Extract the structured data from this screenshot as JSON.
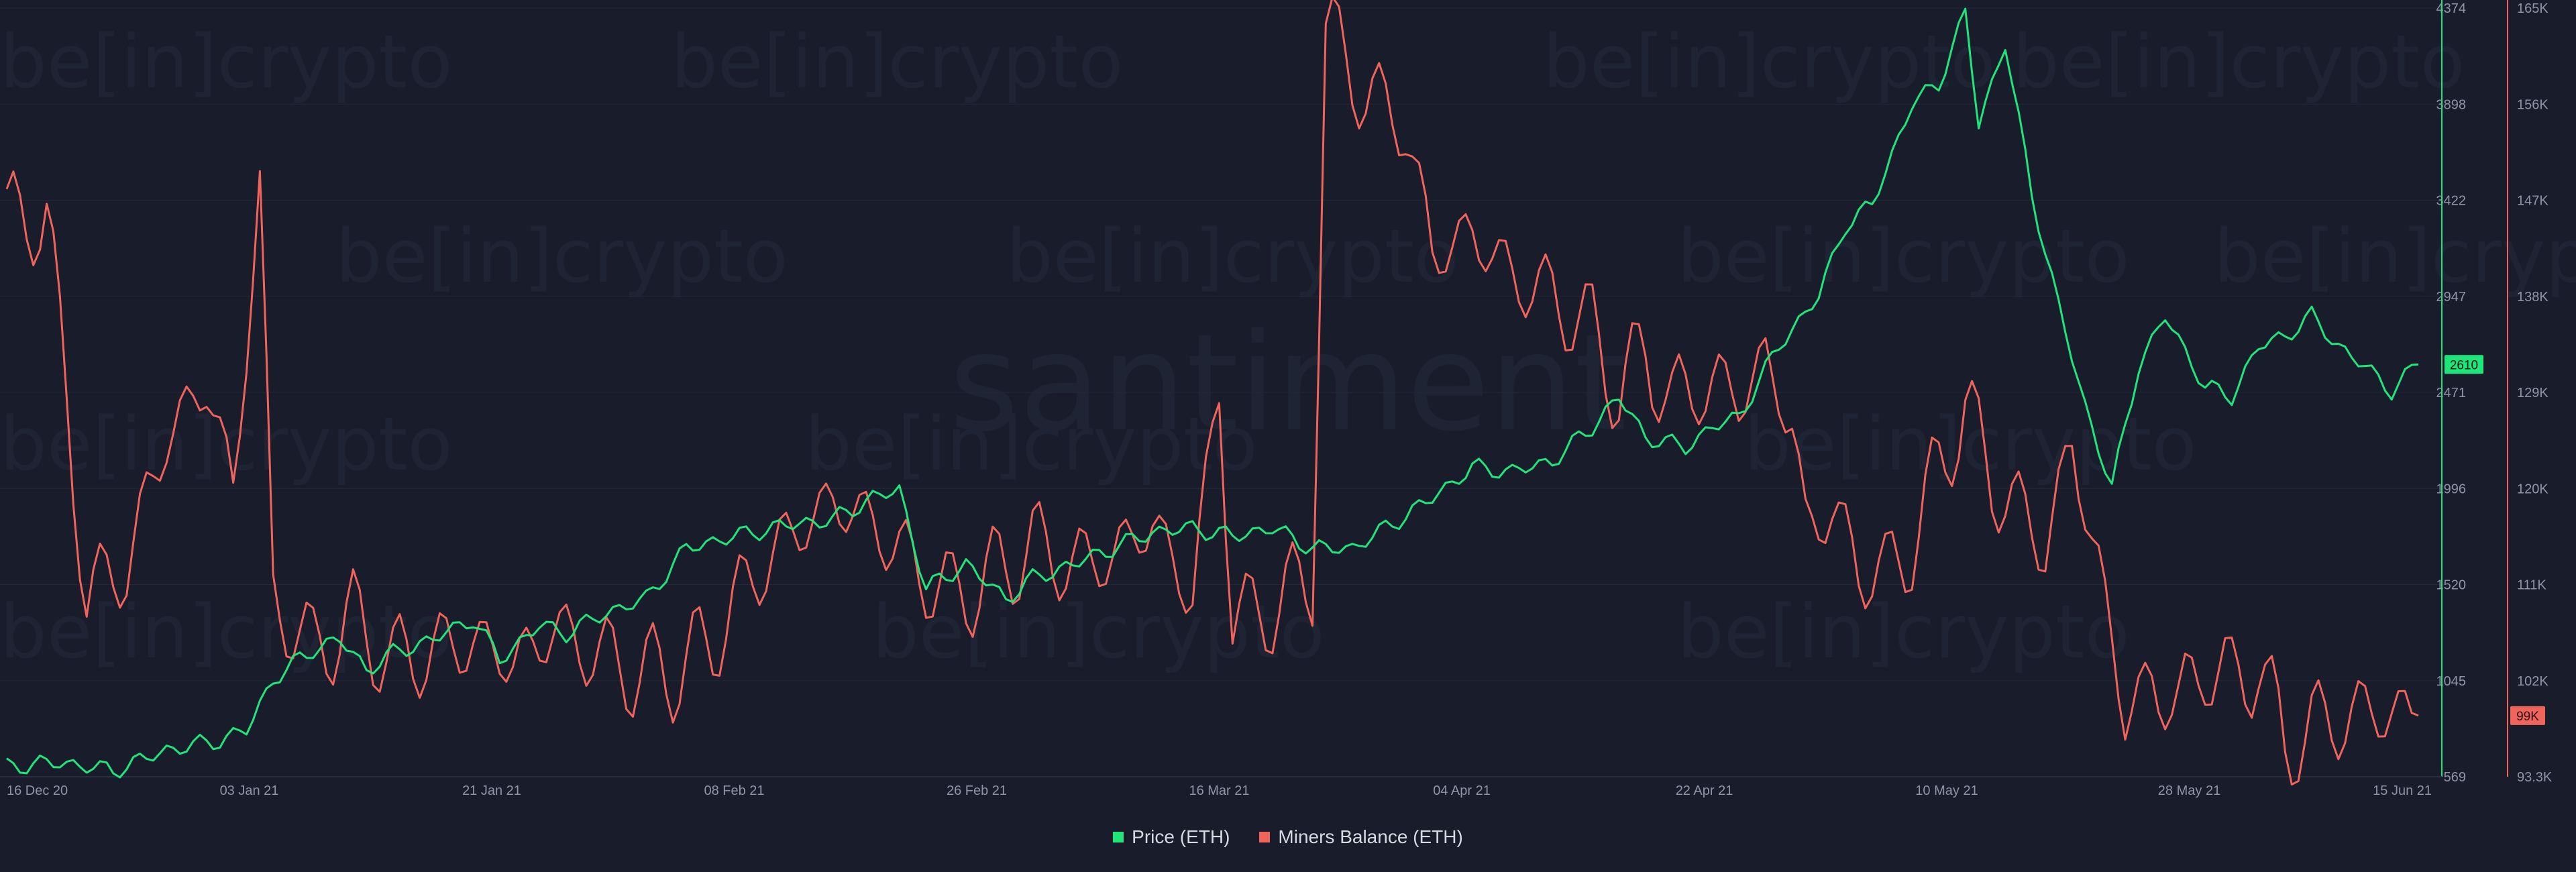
{
  "watermark": {
    "brand": "santiment",
    "partner": "be[in]crypto"
  },
  "colors": {
    "background": "#181c2b",
    "price": "#1fe67a",
    "miners": "#f0645c",
    "grid": "#232838",
    "axis_text": "#8f95a6"
  },
  "legend": {
    "price_label": "Price (ETH)",
    "miners_label": "Miners Balance (ETH)"
  },
  "chart_data": {
    "type": "line",
    "x_axis": {
      "ticks": [
        "16 Dec 20",
        "03 Jan 21",
        "21 Jan 21",
        "08 Feb 21",
        "26 Feb 21",
        "16 Mar 21",
        "04 Apr 21",
        "22 Apr 21",
        "10 May 21",
        "28 May 21",
        "15 Jun 21"
      ],
      "range": [
        "2020-12-16",
        "2021-06-15"
      ]
    },
    "y_axis_left": {
      "label": "",
      "ticks": [
        "4374",
        "3898",
        "3422",
        "2947",
        "2471",
        "1996",
        "1520",
        "1045",
        "569"
      ],
      "range": [
        569,
        4374
      ],
      "current_badge": "2610"
    },
    "y_axis_right": {
      "label": "",
      "ticks": [
        "165K",
        "156K",
        "147K",
        "138K",
        "129K",
        "120K",
        "111K",
        "102K",
        "93.3K"
      ],
      "range": [
        93300,
        165000
      ],
      "current_badge": "99K"
    },
    "series": [
      {
        "name": "Price (ETH)",
        "axis": "left",
        "points": [
          [
            "2020-12-16",
            620
          ],
          [
            "2020-12-20",
            640
          ],
          [
            "2020-12-24",
            600
          ],
          [
            "2020-12-28",
            700
          ],
          [
            "2021-01-01",
            750
          ],
          [
            "2021-01-03",
            800
          ],
          [
            "2021-01-05",
            1050
          ],
          [
            "2021-01-08",
            1200
          ],
          [
            "2021-01-10",
            1250
          ],
          [
            "2021-01-12",
            1100
          ],
          [
            "2021-01-14",
            1180
          ],
          [
            "2021-01-17",
            1250
          ],
          [
            "2021-01-20",
            1350
          ],
          [
            "2021-01-22",
            1150
          ],
          [
            "2021-01-25",
            1320
          ],
          [
            "2021-01-27",
            1280
          ],
          [
            "2021-01-30",
            1380
          ],
          [
            "2021-02-02",
            1450
          ],
          [
            "2021-02-05",
            1700
          ],
          [
            "2021-02-08",
            1750
          ],
          [
            "2021-02-10",
            1780
          ],
          [
            "2021-02-13",
            1820
          ],
          [
            "2021-02-16",
            1840
          ],
          [
            "2021-02-19",
            1950
          ],
          [
            "2021-02-21",
            1990
          ],
          [
            "2021-02-23",
            1500
          ],
          [
            "2021-02-26",
            1620
          ],
          [
            "2021-03-01",
            1450
          ],
          [
            "2021-03-03",
            1550
          ],
          [
            "2021-03-06",
            1620
          ],
          [
            "2021-03-09",
            1700
          ],
          [
            "2021-03-12",
            1780
          ],
          [
            "2021-03-15",
            1800
          ],
          [
            "2021-03-18",
            1760
          ],
          [
            "2021-03-21",
            1800
          ],
          [
            "2021-03-24",
            1700
          ],
          [
            "2021-03-27",
            1700
          ],
          [
            "2021-03-30",
            1820
          ],
          [
            "2021-04-02",
            1950
          ],
          [
            "2021-04-05",
            2100
          ],
          [
            "2021-04-08",
            2080
          ],
          [
            "2021-04-11",
            2130
          ],
          [
            "2021-04-14",
            2300
          ],
          [
            "2021-04-16",
            2450
          ],
          [
            "2021-04-18",
            2250
          ],
          [
            "2021-04-21",
            2200
          ],
          [
            "2021-04-23",
            2300
          ],
          [
            "2021-04-25",
            2350
          ],
          [
            "2021-04-28",
            2700
          ],
          [
            "2021-05-01",
            2950
          ],
          [
            "2021-05-03",
            3300
          ],
          [
            "2021-05-05",
            3400
          ],
          [
            "2021-05-08",
            3900
          ],
          [
            "2021-05-10",
            4000
          ],
          [
            "2021-05-12",
            4350
          ],
          [
            "2021-05-13",
            3800
          ],
          [
            "2021-05-15",
            4200
          ],
          [
            "2021-05-17",
            3450
          ],
          [
            "2021-05-19",
            2900
          ],
          [
            "2021-05-21",
            2400
          ],
          [
            "2021-05-23",
            2000
          ],
          [
            "2021-05-25",
            2600
          ],
          [
            "2021-05-27",
            2850
          ],
          [
            "2021-05-30",
            2500
          ],
          [
            "2021-06-01",
            2450
          ],
          [
            "2021-06-03",
            2700
          ],
          [
            "2021-06-05",
            2750
          ],
          [
            "2021-06-07",
            2850
          ],
          [
            "2021-06-09",
            2700
          ],
          [
            "2021-06-11",
            2600
          ],
          [
            "2021-06-13",
            2480
          ],
          [
            "2021-06-15",
            2610
          ]
        ]
      },
      {
        "name": "Miners Balance (ETH)",
        "axis": "right",
        "points": [
          [
            "2020-12-16",
            145000
          ],
          [
            "2020-12-19",
            146000
          ],
          [
            "2020-12-22",
            110000
          ],
          [
            "2020-12-25",
            113000
          ],
          [
            "2020-12-28",
            125000
          ],
          [
            "2020-12-31",
            130000
          ],
          [
            "2021-01-02",
            120000
          ],
          [
            "2021-01-04",
            148000
          ],
          [
            "2021-01-05",
            110000
          ],
          [
            "2021-01-08",
            105000
          ],
          [
            "2021-01-11",
            108000
          ],
          [
            "2021-01-14",
            104000
          ],
          [
            "2021-01-17",
            105000
          ],
          [
            "2021-01-20",
            106000
          ],
          [
            "2021-01-23",
            104000
          ],
          [
            "2021-01-26",
            107000
          ],
          [
            "2021-01-29",
            105000
          ],
          [
            "2021-02-01",
            103000
          ],
          [
            "2021-02-04",
            103000
          ],
          [
            "2021-02-07",
            106000
          ],
          [
            "2021-02-10",
            112000
          ],
          [
            "2021-02-13",
            116000
          ],
          [
            "2021-02-16",
            119000
          ],
          [
            "2021-02-19",
            117000
          ],
          [
            "2021-02-22",
            113000
          ],
          [
            "2021-02-25",
            110000
          ],
          [
            "2021-02-28",
            112000
          ],
          [
            "2021-03-03",
            115000
          ],
          [
            "2021-03-06",
            113000
          ],
          [
            "2021-03-09",
            114000
          ],
          [
            "2021-03-12",
            117000
          ],
          [
            "2021-03-15",
            110000
          ],
          [
            "2021-03-17",
            130000
          ],
          [
            "2021-03-18",
            108000
          ],
          [
            "2021-03-21",
            109000
          ],
          [
            "2021-03-24",
            112000
          ],
          [
            "2021-03-25",
            163000
          ],
          [
            "2021-03-28",
            157000
          ],
          [
            "2021-03-31",
            154000
          ],
          [
            "2021-04-02",
            142000
          ],
          [
            "2021-04-05",
            144000
          ],
          [
            "2021-04-08",
            140000
          ],
          [
            "2021-04-11",
            138000
          ],
          [
            "2021-04-14",
            135000
          ],
          [
            "2021-04-16",
            129000
          ],
          [
            "2021-04-18",
            133000
          ],
          [
            "2021-04-20",
            128000
          ],
          [
            "2021-04-22",
            130000
          ],
          [
            "2021-04-25",
            129000
          ],
          [
            "2021-04-27",
            132000
          ],
          [
            "2021-04-29",
            126000
          ],
          [
            "2021-04-30",
            117000
          ],
          [
            "2021-05-02",
            118000
          ],
          [
            "2021-05-04",
            113000
          ],
          [
            "2021-05-06",
            112000
          ],
          [
            "2021-05-08",
            115000
          ],
          [
            "2021-05-10",
            122000
          ],
          [
            "2021-05-12",
            128000
          ],
          [
            "2021-05-14",
            121000
          ],
          [
            "2021-05-16",
            118000
          ],
          [
            "2021-05-18",
            115000
          ],
          [
            "2021-05-20",
            124000
          ],
          [
            "2021-05-22",
            113000
          ],
          [
            "2021-05-24",
            99000
          ],
          [
            "2021-05-26",
            102000
          ],
          [
            "2021-05-28",
            100000
          ],
          [
            "2021-05-30",
            104000
          ],
          [
            "2021-06-01",
            102000
          ],
          [
            "2021-06-03",
            104000
          ],
          [
            "2021-06-05",
            96000
          ],
          [
            "2021-06-07",
            98000
          ],
          [
            "2021-06-10",
            99000
          ],
          [
            "2021-06-12",
            99500
          ],
          [
            "2021-06-15",
            99000
          ]
        ]
      }
    ]
  }
}
